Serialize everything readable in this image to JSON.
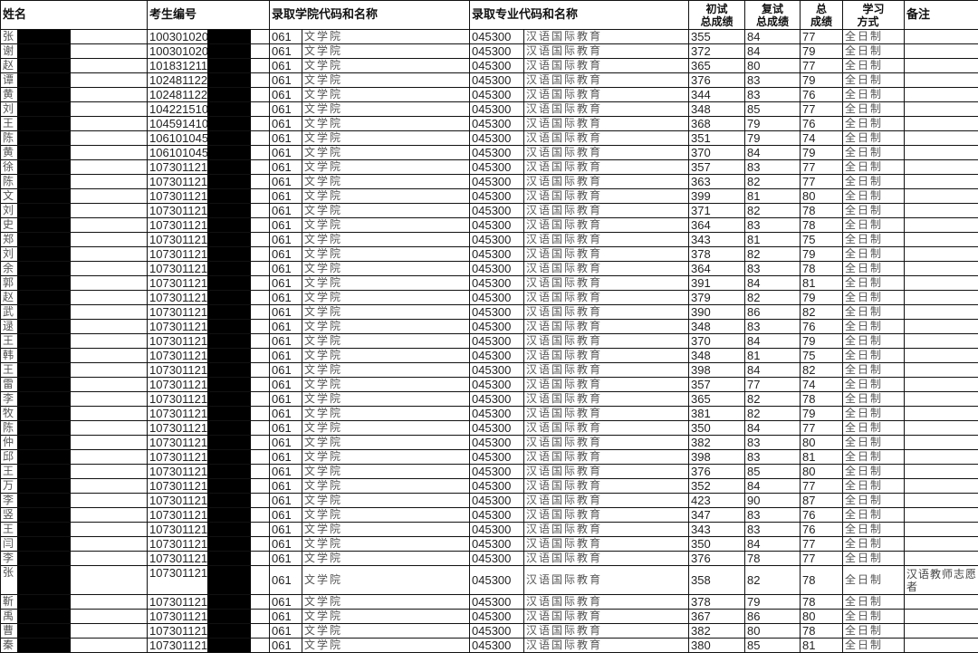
{
  "headers": {
    "name": "姓名",
    "id": "考生编号",
    "college": "录取学院代码和名称",
    "major": "录取专业代码和名称",
    "prelim": "初试总成绩",
    "retest": "复试总成绩",
    "total": "总成绩",
    "mode": "学习方式",
    "remark": "备注"
  },
  "header_lines": {
    "prelim": [
      "初试",
      "总成绩"
    ],
    "retest": [
      "复试",
      "总成绩"
    ],
    "total": [
      "总",
      "成绩"
    ],
    "mode": [
      "学习",
      "方式"
    ]
  },
  "college_code": "061",
  "college_name": "文学院",
  "major_code": "045300",
  "major_name": "汉语国际教育",
  "study_mode": "全日制",
  "redaction_color": "#000000",
  "rows": [
    {
      "surname": "张",
      "id": "100301020",
      "prelim": "355",
      "retest": "84",
      "total": "77",
      "remark": ""
    },
    {
      "surname": "谢",
      "id": "100301020",
      "prelim": "372",
      "retest": "84",
      "total": "79",
      "remark": ""
    },
    {
      "surname": "赵",
      "id": "101831211",
      "prelim": "365",
      "retest": "80",
      "total": "77",
      "remark": ""
    },
    {
      "surname": "谭",
      "id": "102481122",
      "prelim": "376",
      "retest": "83",
      "total": "79",
      "remark": ""
    },
    {
      "surname": "黄",
      "id": "102481122",
      "prelim": "344",
      "retest": "83",
      "total": "76",
      "remark": ""
    },
    {
      "surname": "刘",
      "id": "104221510",
      "prelim": "348",
      "retest": "85",
      "total": "77",
      "remark": ""
    },
    {
      "surname": "王",
      "id": "104591410",
      "prelim": "368",
      "retest": "79",
      "total": "76",
      "remark": ""
    },
    {
      "surname": "陈",
      "id": "106101045",
      "prelim": "351",
      "retest": "79",
      "total": "74",
      "remark": ""
    },
    {
      "surname": "黄",
      "id": "106101045",
      "prelim": "370",
      "retest": "84",
      "total": "79",
      "remark": ""
    },
    {
      "surname": "徐",
      "id": "107301121",
      "prelim": "357",
      "retest": "83",
      "total": "77",
      "remark": ""
    },
    {
      "surname": "陈",
      "id": "107301121",
      "prelim": "363",
      "retest": "82",
      "total": "77",
      "remark": ""
    },
    {
      "surname": "文",
      "id": "107301121",
      "prelim": "399",
      "retest": "81",
      "total": "80",
      "remark": ""
    },
    {
      "surname": "刘",
      "id": "107301121",
      "prelim": "371",
      "retest": "82",
      "total": "78",
      "remark": ""
    },
    {
      "surname": "史",
      "id": "107301121",
      "prelim": "364",
      "retest": "83",
      "total": "78",
      "remark": ""
    },
    {
      "surname": "郑",
      "id": "107301121",
      "prelim": "343",
      "retest": "81",
      "total": "75",
      "remark": ""
    },
    {
      "surname": "刘",
      "id": "107301121",
      "prelim": "378",
      "retest": "82",
      "total": "79",
      "remark": ""
    },
    {
      "surname": "余",
      "id": "107301121",
      "prelim": "364",
      "retest": "83",
      "total": "78",
      "remark": ""
    },
    {
      "surname": "郭",
      "id": "107301121",
      "prelim": "391",
      "retest": "84",
      "total": "81",
      "remark": ""
    },
    {
      "surname": "赵",
      "id": "107301121",
      "prelim": "379",
      "retest": "82",
      "total": "79",
      "remark": ""
    },
    {
      "surname": "武",
      "id": "107301121",
      "prelim": "390",
      "retest": "86",
      "total": "82",
      "remark": ""
    },
    {
      "surname": "逯",
      "id": "107301121",
      "prelim": "348",
      "retest": "83",
      "total": "76",
      "remark": ""
    },
    {
      "surname": "王",
      "id": "107301121",
      "prelim": "370",
      "retest": "84",
      "total": "79",
      "remark": ""
    },
    {
      "surname": "韩",
      "id": "107301121",
      "prelim": "348",
      "retest": "81",
      "total": "75",
      "remark": ""
    },
    {
      "surname": "王",
      "id": "107301121",
      "prelim": "398",
      "retest": "84",
      "total": "82",
      "remark": ""
    },
    {
      "surname": "雷",
      "id": "107301121",
      "prelim": "357",
      "retest": "77",
      "total": "74",
      "remark": ""
    },
    {
      "surname": "李",
      "id": "107301121",
      "prelim": "365",
      "retest": "82",
      "total": "78",
      "remark": ""
    },
    {
      "surname": "牧",
      "id": "107301121",
      "prelim": "381",
      "retest": "82",
      "total": "79",
      "remark": ""
    },
    {
      "surname": "陈",
      "id": "107301121",
      "prelim": "350",
      "retest": "84",
      "total": "77",
      "remark": ""
    },
    {
      "surname": "仲",
      "id": "107301121",
      "prelim": "382",
      "retest": "83",
      "total": "80",
      "remark": ""
    },
    {
      "surname": "邱",
      "id": "107301121",
      "prelim": "398",
      "retest": "83",
      "total": "81",
      "remark": ""
    },
    {
      "surname": "王",
      "id": "107301121",
      "prelim": "376",
      "retest": "85",
      "total": "80",
      "remark": ""
    },
    {
      "surname": "万",
      "id": "107301121",
      "prelim": "352",
      "retest": "84",
      "total": "77",
      "remark": ""
    },
    {
      "surname": "李",
      "id": "107301121",
      "prelim": "423",
      "retest": "90",
      "total": "87",
      "remark": ""
    },
    {
      "surname": "竖",
      "id": "107301121",
      "prelim": "347",
      "retest": "83",
      "total": "76",
      "remark": ""
    },
    {
      "surname": "王",
      "id": "107301121",
      "prelim": "343",
      "retest": "83",
      "total": "76",
      "remark": ""
    },
    {
      "surname": "闫",
      "id": "107301121",
      "prelim": "350",
      "retest": "84",
      "total": "77",
      "remark": ""
    },
    {
      "surname": "李",
      "id": "107301121",
      "prelim": "376",
      "retest": "78",
      "total": "77",
      "remark": ""
    },
    {
      "surname": "张",
      "id": "107301121",
      "prelim": "358",
      "retest": "82",
      "total": "78",
      "remark": "汉语教师志愿者"
    },
    {
      "surname": "靳",
      "id": "107301121",
      "prelim": "378",
      "retest": "79",
      "total": "78",
      "remark": ""
    },
    {
      "surname": "禹",
      "id": "107301121",
      "prelim": "367",
      "retest": "86",
      "total": "80",
      "remark": ""
    },
    {
      "surname": "曹",
      "id": "107301121",
      "prelim": "382",
      "retest": "80",
      "total": "78",
      "remark": ""
    },
    {
      "surname": "秦",
      "id": "107301121",
      "prelim": "380",
      "retest": "85",
      "total": "81",
      "remark": ""
    }
  ]
}
